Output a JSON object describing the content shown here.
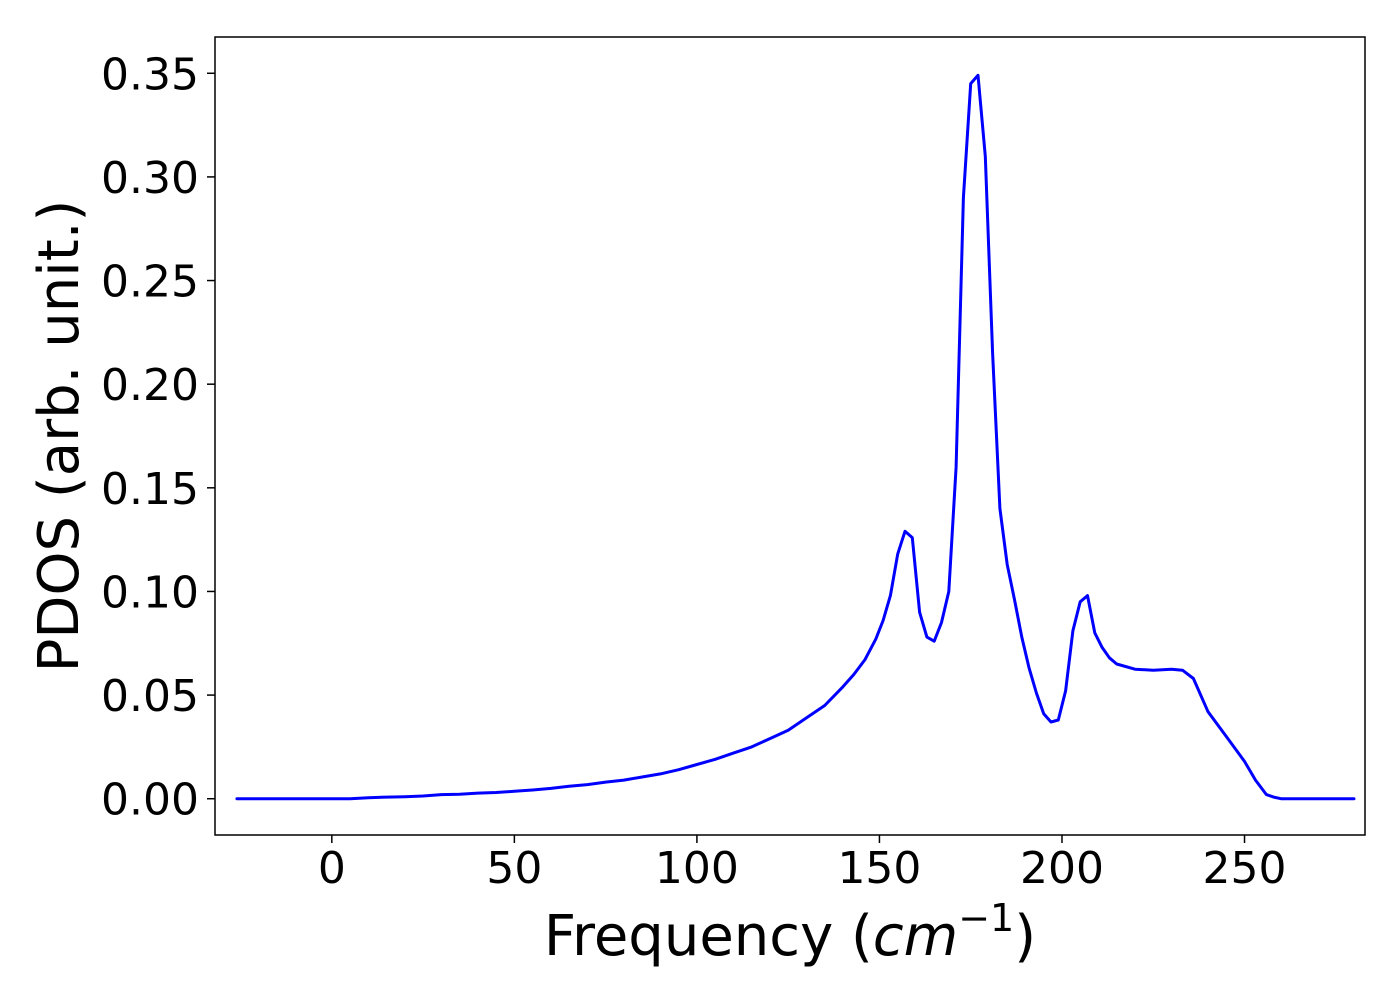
{
  "chart_data": {
    "type": "line",
    "title": "",
    "xlabel": "Frequency (",
    "xlabel_math_base": "cm",
    "xlabel_math_exp": "−1",
    "xlabel_close": ")",
    "ylabel": "PDOS (arb. unit.)",
    "xlim": [
      -32,
      283
    ],
    "ylim": [
      -0.0175,
      0.3675
    ],
    "xticks": [
      0,
      50,
      100,
      150,
      200,
      250
    ],
    "xtick_labels": [
      "0",
      "50",
      "100",
      "150",
      "200",
      "250"
    ],
    "yticks": [
      0.0,
      0.05,
      0.1,
      0.15,
      0.2,
      0.25,
      0.3,
      0.35
    ],
    "ytick_labels": [
      "0.00",
      "0.05",
      "0.10",
      "0.15",
      "0.20",
      "0.25",
      "0.30",
      "0.35"
    ],
    "grid": false,
    "legend": "none",
    "series": [
      {
        "color": "#0000ff",
        "x": [
          -26,
          -10,
          0,
          5,
          10,
          15,
          20,
          25,
          30,
          35,
          40,
          45,
          50,
          55,
          60,
          65,
          70,
          75,
          80,
          85,
          90,
          95,
          100,
          105,
          110,
          115,
          120,
          125,
          130,
          135,
          140,
          143,
          146,
          149,
          151,
          153,
          155,
          157,
          159,
          161,
          163,
          165,
          167,
          169,
          171,
          173,
          175,
          177,
          179,
          181,
          183,
          185,
          187,
          189,
          191,
          193,
          195,
          197,
          199,
          201,
          203,
          205,
          207,
          209,
          211,
          213,
          215,
          220,
          225,
          230,
          233,
          236,
          240,
          245,
          250,
          253,
          256,
          258,
          260,
          270,
          280
        ],
        "y": [
          0.0,
          0.0,
          0.0,
          0.0,
          0.0005,
          0.0008,
          0.001,
          0.0013,
          0.002,
          0.0022,
          0.0027,
          0.003,
          0.0036,
          0.0042,
          0.005,
          0.006,
          0.0068,
          0.008,
          0.009,
          0.0105,
          0.012,
          0.014,
          0.0165,
          0.019,
          0.022,
          0.025,
          0.029,
          0.033,
          0.039,
          0.045,
          0.054,
          0.06,
          0.067,
          0.077,
          0.086,
          0.098,
          0.118,
          0.129,
          0.126,
          0.09,
          0.078,
          0.076,
          0.085,
          0.1,
          0.16,
          0.29,
          0.345,
          0.349,
          0.31,
          0.215,
          0.14,
          0.113,
          0.096,
          0.078,
          0.063,
          0.051,
          0.041,
          0.037,
          0.038,
          0.052,
          0.081,
          0.095,
          0.098,
          0.08,
          0.073,
          0.068,
          0.065,
          0.0625,
          0.062,
          0.0625,
          0.062,
          0.058,
          0.042,
          0.03,
          0.018,
          0.009,
          0.002,
          0.0008,
          0.0,
          0.0,
          0.0
        ]
      }
    ]
  }
}
